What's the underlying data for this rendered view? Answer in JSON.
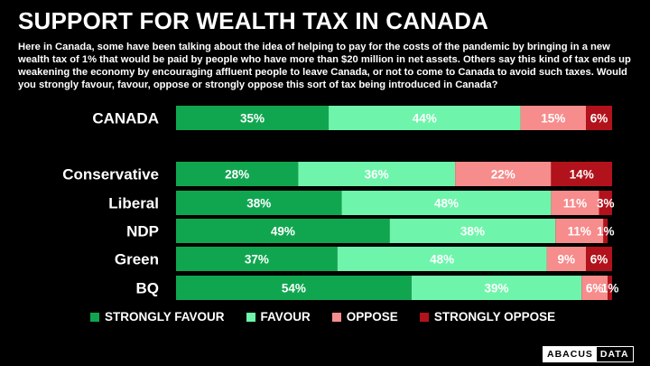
{
  "title": "SUPPORT FOR WEALTH TAX IN CANADA",
  "subtitle": "Here in Canada, some have been talking about the idea of helping to pay for the costs of the pandemic by bringing in a new wealth tax of 1% that would be paid by people who have more than $20 million in net assets. Others say this kind of tax ends up weakening the economy by encouraging affluent people to leave Canada, or not to come to Canada to avoid such taxes. Would you strongly favour, favour, oppose or strongly oppose this sort of tax being introduced in Canada?",
  "logo": {
    "part1": "ABACUS",
    "part2": "DATA"
  },
  "colors": {
    "strongly_favour": "#10a650",
    "favour": "#6ff5ab",
    "oppose": "#f68c8c",
    "strongly_oppose": "#b2121b"
  },
  "chart_data": {
    "type": "bar",
    "orientation": "horizontal",
    "stacked": true,
    "unit": "%",
    "xlim": [
      0,
      100
    ],
    "categories": [
      "CANADA",
      "Conservative",
      "Liberal",
      "NDP",
      "Green",
      "BQ"
    ],
    "series": [
      {
        "name": "STRONGLY FAVOUR",
        "color": "#10a650",
        "values": [
          35,
          28,
          38,
          49,
          37,
          54
        ]
      },
      {
        "name": "FAVOUR",
        "color": "#6ff5ab",
        "values": [
          44,
          36,
          48,
          38,
          48,
          39
        ]
      },
      {
        "name": "OPPOSE",
        "color": "#f68c8c",
        "values": [
          15,
          22,
          11,
          11,
          9,
          6
        ]
      },
      {
        "name": "STRONGLY OPPOSE",
        "color": "#b2121b",
        "values": [
          6,
          14,
          3,
          1,
          6,
          1
        ]
      }
    ],
    "legend_position": "bottom",
    "grid": false
  }
}
